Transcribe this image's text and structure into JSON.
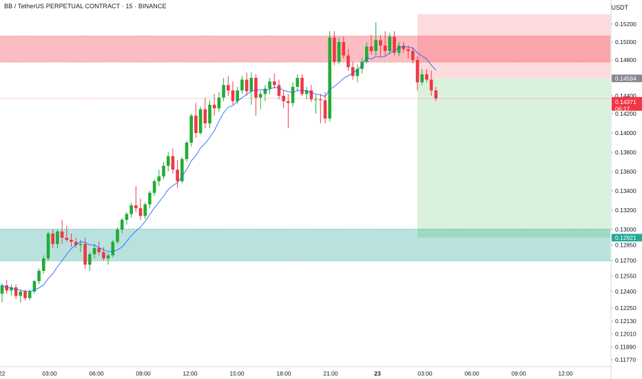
{
  "header": {
    "title": "BB / TetherUS PERPETUAL CONTRACT · 15 · BINANCE",
    "currency": "USDT"
  },
  "chart_data": {
    "type": "candlestick",
    "y_ticks": [
      "0.15200",
      "0.15000",
      "0.14800",
      "0.14594",
      "0.14400",
      "0.14200",
      "0.14000",
      "0.13800",
      "0.13600",
      "0.13400",
      "0.13200",
      "0.13000",
      "0.12921",
      "0.12850",
      "0.12700",
      "0.12550",
      "0.12400",
      "0.12250",
      "0.12130",
      "0.12010",
      "0.11890",
      "0.11770"
    ],
    "x_ticks": [
      "22",
      "03:00",
      "06:00",
      "09:00",
      "12:00",
      "15:00",
      "18:00",
      "21:00",
      "23",
      "03:00",
      "06:00",
      "09:00",
      "12:00"
    ],
    "price_labels": [
      {
        "name": "entry",
        "value": "0.14594",
        "color": "#868993"
      },
      {
        "name": "last",
        "value": "0.14371",
        "sub": "06:17",
        "color": "#f23645"
      },
      {
        "name": "target",
        "value": "0.12921",
        "color": "#22ab94"
      }
    ],
    "zones": [
      {
        "name": "supply",
        "from": 0.14776,
        "to": 0.15068,
        "color": "#f23645"
      },
      {
        "name": "demand",
        "from": 0.12695,
        "to": 0.13005,
        "color": "#26a69a"
      }
    ],
    "position": {
      "entry": 0.14594,
      "stop": 0.1531,
      "target": 0.12921,
      "start_x": "02:30 (23)"
    },
    "colors": {
      "up": "#22ab34",
      "down": "#f23645",
      "ma": "#2962ff"
    },
    "candles": [
      [
        0.1238,
        0.1248,
        0.123,
        0.1246
      ],
      [
        0.1246,
        0.1251,
        0.1238,
        0.1241
      ],
      [
        0.1241,
        0.1247,
        0.1236,
        0.1244
      ],
      [
        0.1244,
        0.1247,
        0.1233,
        0.1236
      ],
      [
        0.1236,
        0.1242,
        0.123,
        0.124
      ],
      [
        0.124,
        0.1242,
        0.1232,
        0.1234
      ],
      [
        0.1234,
        0.1242,
        0.1232,
        0.124
      ],
      [
        0.124,
        0.1251,
        0.1238,
        0.125
      ],
      [
        0.125,
        0.1262,
        0.1247,
        0.126
      ],
      [
        0.126,
        0.1275,
        0.1257,
        0.1272
      ],
      [
        0.1272,
        0.1298,
        0.127,
        0.1296
      ],
      [
        0.1296,
        0.13,
        0.1282,
        0.1286
      ],
      [
        0.1286,
        0.13,
        0.1282,
        0.1298
      ],
      [
        0.1298,
        0.131,
        0.1286,
        0.1292
      ],
      [
        0.1292,
        0.1304,
        0.1288,
        0.129
      ],
      [
        0.129,
        0.1296,
        0.1283,
        0.1288
      ],
      [
        0.1288,
        0.1292,
        0.1282,
        0.1285
      ],
      [
        0.1285,
        0.129,
        0.1278,
        0.1286
      ],
      [
        0.1286,
        0.1292,
        0.1262,
        0.1266
      ],
      [
        0.1266,
        0.1278,
        0.126,
        0.1276
      ],
      [
        0.1276,
        0.1286,
        0.1272,
        0.1282
      ],
      [
        0.1282,
        0.1288,
        0.1275,
        0.1278
      ],
      [
        0.1278,
        0.1283,
        0.127,
        0.1272
      ],
      [
        0.1272,
        0.1277,
        0.1266,
        0.1275
      ],
      [
        0.1275,
        0.129,
        0.1273,
        0.1288
      ],
      [
        0.1288,
        0.1302,
        0.1286,
        0.13
      ],
      [
        0.13,
        0.1312,
        0.1296,
        0.131
      ],
      [
        0.131,
        0.1318,
        0.1305,
        0.1316
      ],
      [
        0.1316,
        0.1328,
        0.1312,
        0.1325
      ],
      [
        0.1325,
        0.1345,
        0.1318,
        0.1322
      ],
      [
        0.1322,
        0.1332,
        0.131,
        0.1314
      ],
      [
        0.1314,
        0.1328,
        0.1311,
        0.1326
      ],
      [
        0.1326,
        0.134,
        0.1322,
        0.1338
      ],
      [
        0.1338,
        0.1352,
        0.1335,
        0.135
      ],
      [
        0.135,
        0.1362,
        0.1345,
        0.1355
      ],
      [
        0.1355,
        0.137,
        0.1352,
        0.1366
      ],
      [
        0.1366,
        0.138,
        0.136,
        0.1376
      ],
      [
        0.1376,
        0.1384,
        0.1358,
        0.1362
      ],
      [
        0.1362,
        0.1372,
        0.1343,
        0.135
      ],
      [
        0.135,
        0.1375,
        0.1348,
        0.1373
      ],
      [
        0.1373,
        0.1392,
        0.137,
        0.139
      ],
      [
        0.139,
        0.142,
        0.1386,
        0.1418
      ],
      [
        0.1418,
        0.1432,
        0.1395,
        0.14
      ],
      [
        0.14,
        0.1428,
        0.1398,
        0.1425
      ],
      [
        0.1425,
        0.1438,
        0.1405,
        0.141
      ],
      [
        0.141,
        0.1435,
        0.1405,
        0.143
      ],
      [
        0.143,
        0.1442,
        0.1418,
        0.1426
      ],
      [
        0.1426,
        0.1444,
        0.1422,
        0.1438
      ],
      [
        0.1438,
        0.146,
        0.1434,
        0.1452
      ],
      [
        0.1452,
        0.1462,
        0.144,
        0.1446
      ],
      [
        0.1446,
        0.1456,
        0.143,
        0.1434
      ],
      [
        0.1434,
        0.145,
        0.1431,
        0.1446
      ],
      [
        0.1446,
        0.1462,
        0.1442,
        0.1458
      ],
      [
        0.1458,
        0.1466,
        0.144,
        0.1445
      ],
      [
        0.1445,
        0.1466,
        0.143,
        0.146
      ],
      [
        0.146,
        0.1464,
        0.1418,
        0.1438
      ],
      [
        0.1438,
        0.1445,
        0.1425,
        0.1442
      ],
      [
        0.1442,
        0.1452,
        0.1434,
        0.1448
      ],
      [
        0.1448,
        0.146,
        0.1442,
        0.1456
      ],
      [
        0.1456,
        0.1465,
        0.1448,
        0.1452
      ],
      [
        0.1452,
        0.1458,
        0.1436,
        0.144
      ],
      [
        0.144,
        0.1446,
        0.1426,
        0.1434
      ],
      [
        0.1434,
        0.1442,
        0.1405,
        0.1432
      ],
      [
        0.1432,
        0.1455,
        0.1428,
        0.145
      ],
      [
        0.145,
        0.1464,
        0.1445,
        0.146
      ],
      [
        0.146,
        0.1464,
        0.144,
        0.1442
      ],
      [
        0.1442,
        0.145,
        0.1436,
        0.1446
      ],
      [
        0.1446,
        0.1452,
        0.1433,
        0.1436
      ],
      [
        0.1436,
        0.1441,
        0.142,
        0.1436
      ],
      [
        0.1436,
        0.1442,
        0.141,
        0.1435
      ],
      [
        0.1435,
        0.1444,
        0.141,
        0.1415
      ],
      [
        0.1415,
        0.1512,
        0.1412,
        0.1505
      ],
      [
        0.1505,
        0.1512,
        0.1474,
        0.1478
      ],
      [
        0.1478,
        0.1505,
        0.1475,
        0.15
      ],
      [
        0.15,
        0.1506,
        0.1482,
        0.1485
      ],
      [
        0.1485,
        0.1492,
        0.1468,
        0.1472
      ],
      [
        0.1472,
        0.1478,
        0.1458,
        0.1462
      ],
      [
        0.1462,
        0.1475,
        0.1455,
        0.147
      ],
      [
        0.147,
        0.1482,
        0.1465,
        0.1478
      ],
      [
        0.1478,
        0.15,
        0.1476,
        0.1495
      ],
      [
        0.1495,
        0.1508,
        0.1486,
        0.149
      ],
      [
        0.149,
        0.1522,
        0.1485,
        0.1502
      ],
      [
        0.1502,
        0.1508,
        0.1484,
        0.1496
      ],
      [
        0.1496,
        0.1512,
        0.1484,
        0.149
      ],
      [
        0.149,
        0.151,
        0.1486,
        0.1506
      ],
      [
        0.1506,
        0.1512,
        0.1485,
        0.1488
      ],
      [
        0.1488,
        0.15,
        0.1484,
        0.1496
      ],
      [
        0.1496,
        0.15,
        0.1488,
        0.1492
      ],
      [
        0.1492,
        0.1496,
        0.1482,
        0.149
      ],
      [
        0.149,
        0.1494,
        0.1476,
        0.148
      ],
      [
        0.148,
        0.1484,
        0.1446,
        0.1455
      ],
      [
        0.1455,
        0.147,
        0.1452,
        0.1464
      ],
      [
        0.1464,
        0.147,
        0.1455,
        0.1458
      ],
      [
        0.1458,
        0.1468,
        0.144,
        0.1446
      ],
      [
        0.1446,
        0.145,
        0.1434,
        0.1437
      ]
    ]
  }
}
